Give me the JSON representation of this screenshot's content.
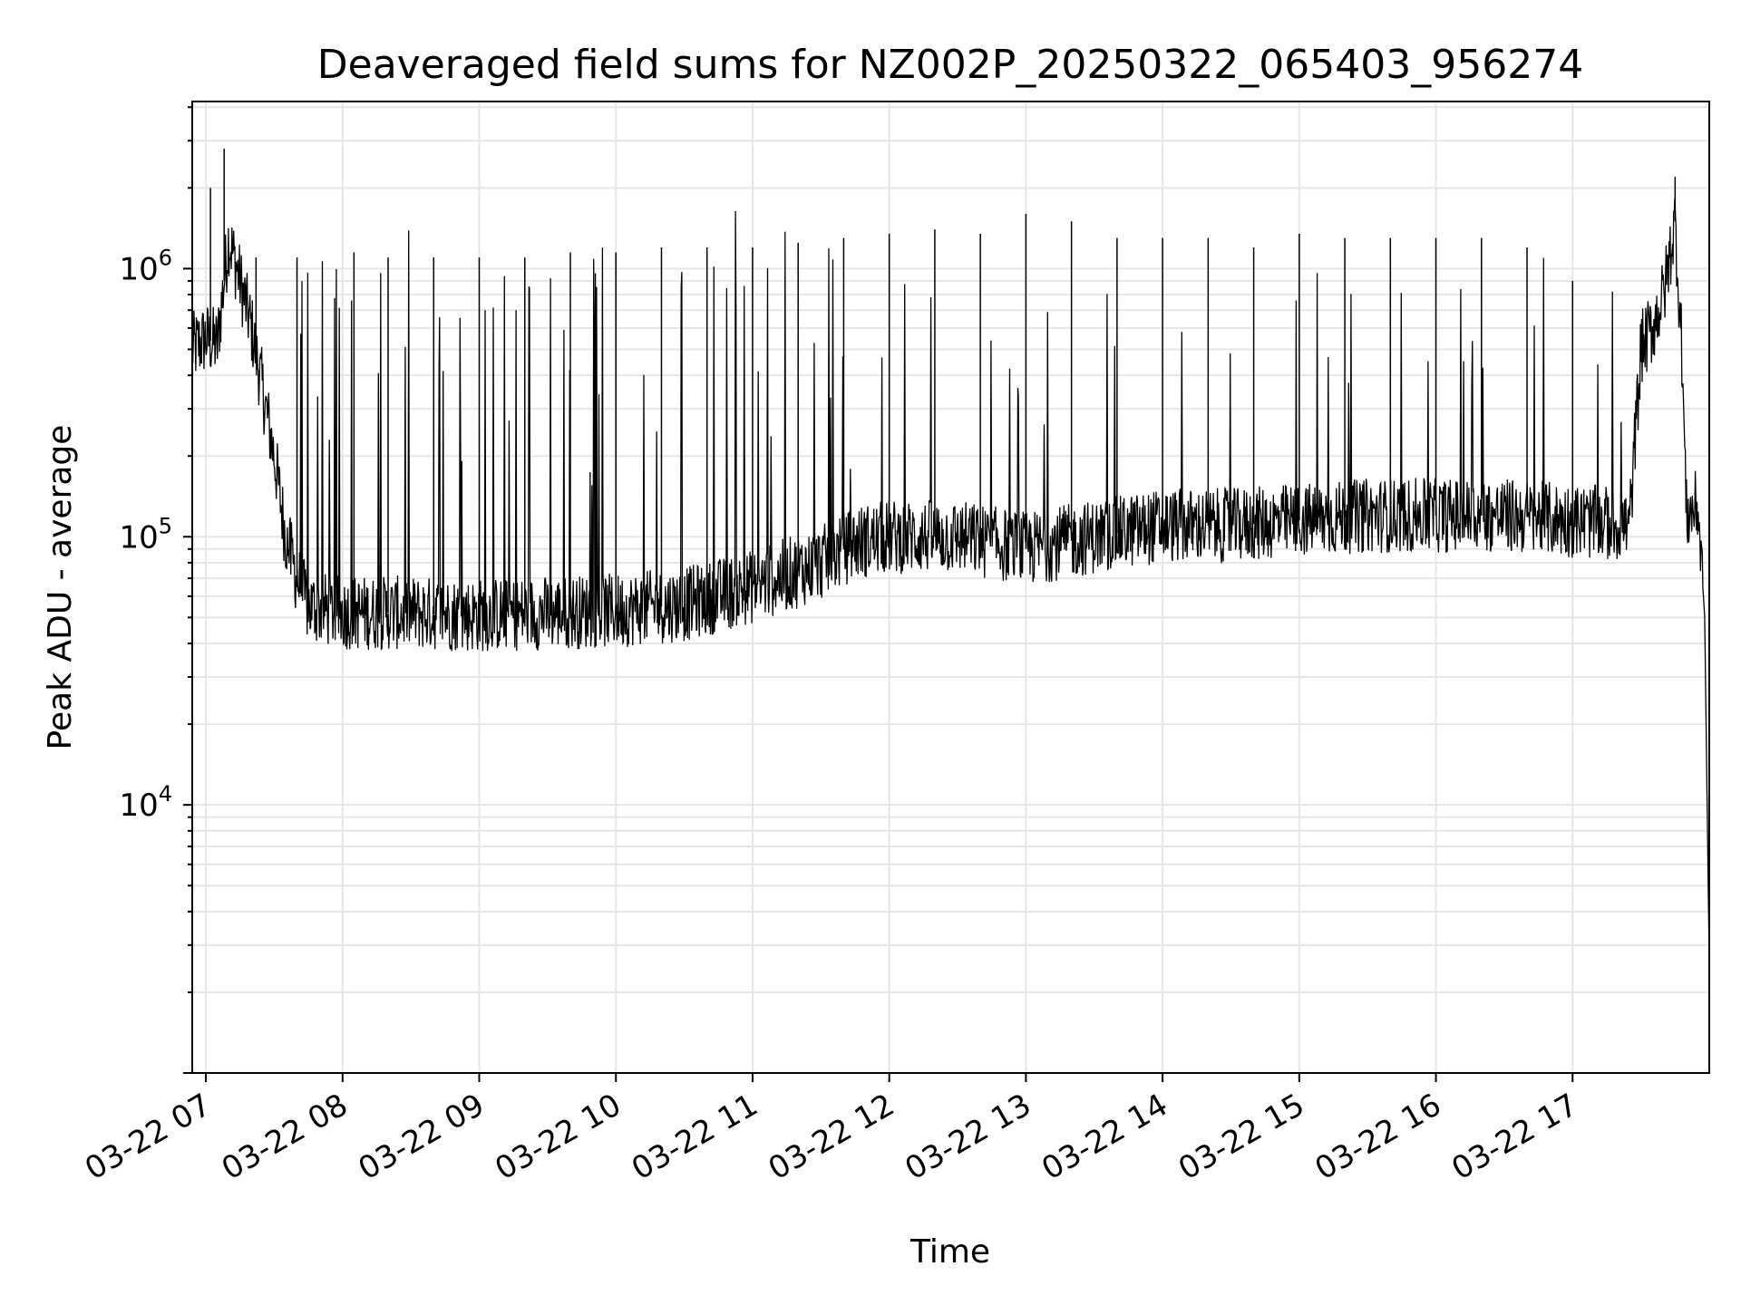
{
  "chart_data": {
    "type": "line",
    "title": "Deaveraged field sums for NZ002P_20250322_065403_956274",
    "xlabel": "Time",
    "ylabel": "Peak ADU - average",
    "yscale": "log",
    "ylim": [
      1000,
      4200000
    ],
    "xlim": [
      "03-22 06:54",
      "03-22 18:00"
    ],
    "grid": true,
    "x_ticks": [
      "03-22 07",
      "03-22 08",
      "03-22 09",
      "03-22 10",
      "03-22 11",
      "03-22 12",
      "03-22 13",
      "03-22 14",
      "03-22 15",
      "03-22 16",
      "03-22 17"
    ],
    "y_ticks": [
      {
        "base": "10",
        "exp": "4",
        "value": 10000
      },
      {
        "base": "10",
        "exp": "5",
        "value": 100000
      },
      {
        "base": "10",
        "exp": "6",
        "value": 1000000
      }
    ],
    "line_color": "#000000",
    "series": [
      {
        "x": [
          "03-22 06:54",
          "03-22 07:00",
          "03-22 07:05",
          "03-22 07:10",
          "03-22 07:15",
          "03-22 07:20",
          "03-22 07:25",
          "03-22 07:30",
          "03-22 07:35",
          "03-22 07:40",
          "03-22 07:45",
          "03-22 08:00",
          "03-22 08:30",
          "03-22 09:00",
          "03-22 09:30",
          "03-22 10:00",
          "03-22 10:30",
          "03-22 11:00",
          "03-22 11:30",
          "03-22 11:45",
          "03-22 12:00",
          "03-22 12:30",
          "03-22 13:00",
          "03-22 13:30",
          "03-22 14:00",
          "03-22 14:30",
          "03-22 15:00",
          "03-22 15:30",
          "03-22 16:00",
          "03-22 16:30",
          "03-22 17:00",
          "03-22 17:25",
          "03-22 17:30",
          "03-22 17:35",
          "03-22 17:40",
          "03-22 17:45",
          "03-22 17:48",
          "03-22 17:50",
          "03-22 17:55",
          "03-22 17:58",
          "03-22 18:00"
        ],
        "y": [
          500000,
          550000,
          520000,
          1300000,
          900000,
          600000,
          350000,
          200000,
          100000,
          70000,
          55000,
          52000,
          52000,
          51000,
          52000,
          53000,
          56000,
          65000,
          80000,
          95000,
          100000,
          100000,
          90000,
          100000,
          110000,
          110000,
          115000,
          120000,
          120000,
          120000,
          115000,
          110000,
          500000,
          600000,
          800000,
          1500000,
          500000,
          120000,
          130000,
          50000,
          2500
        ],
        "spikes": [
          {
            "t": "03-22 07:02",
            "y": 2000000
          },
          {
            "t": "03-22 07:08",
            "y": 2800000
          },
          {
            "t": "03-22 07:22",
            "y": 1100000
          },
          {
            "t": "03-22 07:40",
            "y": 1100000
          },
          {
            "t": "03-22 08:05",
            "y": 1150000
          },
          {
            "t": "03-22 08:20",
            "y": 1100000
          },
          {
            "t": "03-22 08:40",
            "y": 1100000
          },
          {
            "t": "03-22 09:00",
            "y": 1100000
          },
          {
            "t": "03-22 09:20",
            "y": 1100000
          },
          {
            "t": "03-22 09:40",
            "y": 1150000
          },
          {
            "t": "03-22 10:00",
            "y": 1150000
          },
          {
            "t": "03-22 10:20",
            "y": 1200000
          },
          {
            "t": "03-22 10:40",
            "y": 1200000
          },
          {
            "t": "03-22 11:00",
            "y": 1200000
          },
          {
            "t": "03-22 11:20",
            "y": 1250000
          },
          {
            "t": "03-22 11:40",
            "y": 1300000
          },
          {
            "t": "03-22 12:00",
            "y": 1350000
          },
          {
            "t": "03-22 12:20",
            "y": 1400000
          },
          {
            "t": "03-22 12:40",
            "y": 1350000
          },
          {
            "t": "03-22 13:00",
            "y": 1600000
          },
          {
            "t": "03-22 13:20",
            "y": 1500000
          },
          {
            "t": "03-22 13:40",
            "y": 1300000
          },
          {
            "t": "03-22 14:00",
            "y": 1300000
          },
          {
            "t": "03-22 14:20",
            "y": 1300000
          },
          {
            "t": "03-22 14:40",
            "y": 1200000
          },
          {
            "t": "03-22 15:00",
            "y": 1350000
          },
          {
            "t": "03-22 15:20",
            "y": 1300000
          },
          {
            "t": "03-22 15:40",
            "y": 1300000
          },
          {
            "t": "03-22 16:00",
            "y": 1300000
          },
          {
            "t": "03-22 16:20",
            "y": 1300000
          },
          {
            "t": "03-22 16:40",
            "y": 1200000
          },
          {
            "t": "03-22 17:00",
            "y": 900000
          },
          {
            "t": "03-22 17:45",
            "y": 2200000
          }
        ]
      }
    ]
  }
}
